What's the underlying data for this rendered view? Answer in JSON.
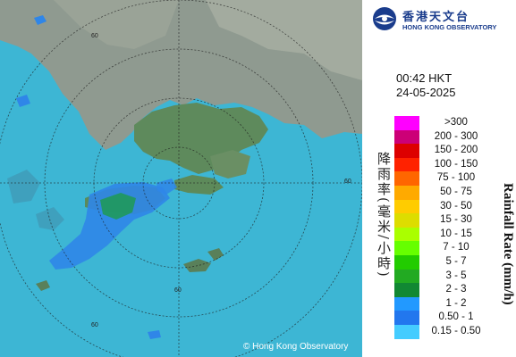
{
  "map": {
    "copyright": "© Hong Kong Observatory",
    "ring_label": "60"
  },
  "logo": {
    "zh": "香港天文台",
    "en": "HONG KONG OBSERVATORY",
    "color": "#1a3c8c"
  },
  "timestamp": {
    "time": "00:42 HKT",
    "date": "24-05-2025"
  },
  "legend": {
    "title_zh": "降雨率(毫米/小時)",
    "title_en": "Rainfall Rate (mm/h)",
    "items": [
      {
        "label": ">300",
        "color": "#ff00ff"
      },
      {
        "label": "200 - 300",
        "color": "#cc0077"
      },
      {
        "label": "150 - 200",
        "color": "#dd0000"
      },
      {
        "label": "100 - 150",
        "color": "#ff2200"
      },
      {
        "label": "75 - 100",
        "color": "#ff6600"
      },
      {
        "label": "50 - 75",
        "color": "#ffaa00"
      },
      {
        "label": "30 - 50",
        "color": "#ffcc00"
      },
      {
        "label": "15 - 30",
        "color": "#dddd00"
      },
      {
        "label": "10 - 15",
        "color": "#aaff00"
      },
      {
        "label": "7 - 10",
        "color": "#66ff00"
      },
      {
        "label": "5 - 7",
        "color": "#22cc00"
      },
      {
        "label": "3 - 5",
        "color": "#22aa22"
      },
      {
        "label": "2 - 3",
        "color": "#118833"
      },
      {
        "label": "1 - 2",
        "color": "#2299ff"
      },
      {
        "label": "0.50 - 1",
        "color": "#2277ee"
      },
      {
        "label": "0.15 - 0.50",
        "color": "#44ccff"
      }
    ]
  }
}
